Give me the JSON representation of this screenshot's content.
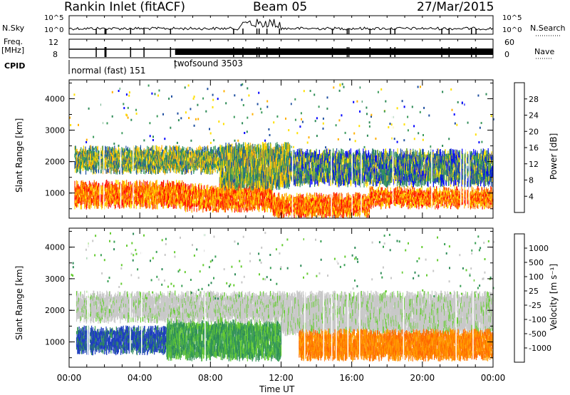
{
  "header": {
    "station": "Rankin Inlet (fitACF)",
    "beam": "Beam 05",
    "date": "27/Mar/2015"
  },
  "summary_panels": {
    "nsky_label": "N.Sky",
    "nsearch_label": "N.Search",
    "nsky_ticks": [
      "10^5",
      "10^0"
    ],
    "nsky_right_ticks": [
      "10^5",
      "10^0"
    ],
    "freq_label_1": "Freq.",
    "freq_label_2": "[MHz]",
    "freq_ticks": [
      "12",
      "8"
    ],
    "nave_label": "Nave",
    "nave_ticks": [
      "60",
      "0"
    ],
    "cpid_label": "CPID",
    "cpid_modes": [
      {
        "name": "normal (fast) 151",
        "start_hour": 0.0,
        "end_hour": 6.0
      },
      {
        "name": "twofsound 3503",
        "start_hour": 6.0,
        "end_hour": 24.0
      }
    ]
  },
  "colorbars": {
    "power": {
      "label": "Power [dB]",
      "ticks": [
        "28",
        "24",
        "20",
        "16",
        "12",
        "8",
        "4"
      ],
      "colors": [
        "#ff0000",
        "#ff3800",
        "#ff7800",
        "#ffb000",
        "#ffe000",
        "#2e8b57",
        "#3c9a5c",
        "#1f4fa0",
        "#0000ff"
      ]
    },
    "velocity": {
      "label": "Velocity [m s⁻¹]",
      "ticks": [
        "1000",
        "500",
        "100",
        "25",
        "-25",
        "-100",
        "-500",
        "-1000"
      ],
      "colors": [
        "#1f3fbf",
        "#2e8b57",
        "#3aa055",
        "#66cc33",
        "#c8c8c8",
        "#ff9a00",
        "#ff6a00",
        "#ff0000"
      ]
    }
  },
  "chart_data": [
    {
      "type": "heatmap",
      "name": "power",
      "ylabel": "Slant Range [km]",
      "xlabel": "",
      "x_ticks": [
        "00:00",
        "04:00",
        "08:00",
        "12:00",
        "16:00",
        "20:00",
        "00:00"
      ],
      "y_ticks": [
        "4000",
        "3000",
        "2000",
        "1000"
      ],
      "xlim_hours": [
        0,
        24
      ],
      "ylim_km": [
        200,
        4600
      ],
      "bands": [
        {
          "start_hour": 0.3,
          "end_hour": 6.5,
          "range_lo": 600,
          "range_hi": 1300,
          "level": "high"
        },
        {
          "start_hour": 6.5,
          "end_hour": 11.5,
          "range_lo": 500,
          "range_hi": 1200,
          "level": "high"
        },
        {
          "start_hour": 11.5,
          "end_hour": 17.0,
          "range_lo": 300,
          "range_hi": 900,
          "level": "high"
        },
        {
          "start_hour": 17.0,
          "end_hour": 24.0,
          "range_lo": 600,
          "range_hi": 1100,
          "level": "high"
        },
        {
          "start_hour": 0.3,
          "end_hour": 8.5,
          "range_lo": 1700,
          "range_hi": 2400,
          "level": "mid"
        },
        {
          "start_hour": 8.5,
          "end_hour": 12.5,
          "range_lo": 1200,
          "range_hi": 2500,
          "level": "mid"
        },
        {
          "start_hour": 12.5,
          "end_hour": 24.0,
          "range_lo": 1300,
          "range_hi": 2300,
          "level": "low"
        }
      ]
    },
    {
      "type": "heatmap",
      "name": "velocity",
      "ylabel": "Slant Range [km]",
      "xlabel": "Time UT",
      "x_ticks": [
        "00:00",
        "04:00",
        "08:00",
        "12:00",
        "16:00",
        "20:00",
        "00:00"
      ],
      "y_ticks": [
        "4000",
        "3000",
        "2000",
        "1000"
      ],
      "xlim_hours": [
        0,
        24
      ],
      "ylim_km": [
        200,
        4600
      ],
      "bands": [
        {
          "start_hour": 0.4,
          "end_hour": 5.5,
          "range_lo": 700,
          "range_hi": 1400,
          "level": "pos_high"
        },
        {
          "start_hour": 5.5,
          "end_hour": 12.0,
          "range_lo": 500,
          "range_hi": 1600,
          "level": "pos_mid"
        },
        {
          "start_hour": 0.4,
          "end_hour": 12.0,
          "range_lo": 1700,
          "range_hi": 2500,
          "level": "near_zero"
        },
        {
          "start_hour": 12.0,
          "end_hour": 24.0,
          "range_lo": 1300,
          "range_hi": 2500,
          "level": "near_zero"
        },
        {
          "start_hour": 13.0,
          "end_hour": 24.0,
          "range_lo": 500,
          "range_hi": 1300,
          "level": "neg_mid"
        }
      ]
    }
  ]
}
